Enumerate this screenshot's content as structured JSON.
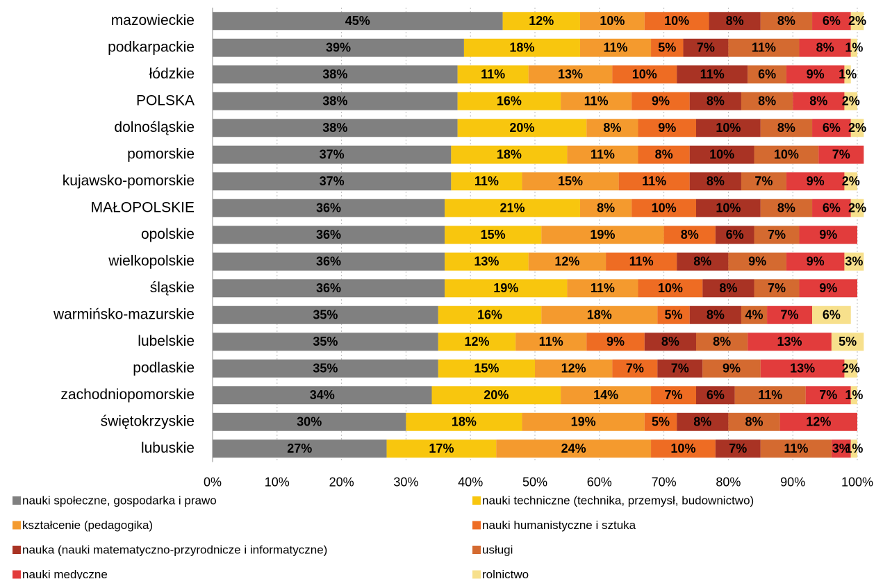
{
  "chart_data": {
    "type": "bar",
    "orientation": "horizontal",
    "stacked": true,
    "grid": true,
    "legend": "bottom",
    "categories": [
      "mazowieckie",
      "podkarpackie",
      "łódzkie",
      "POLSKA",
      "dolnośląskie",
      "pomorskie",
      "kujawsko-pomorskie",
      "MAŁOPOLSKIE",
      "opolskie",
      "wielkopolskie",
      "śląskie",
      "warmińsko-mazurskie",
      "lubelskie",
      "podlaskie",
      "zachodniopomorskie",
      "świętokrzyskie",
      "lubuskie"
    ],
    "xlim": [
      0,
      100
    ],
    "xticks": [
      {
        "value": 0,
        "label": "0%"
      },
      {
        "value": 10,
        "label": "10%"
      },
      {
        "value": 20,
        "label": "20%"
      },
      {
        "value": 30,
        "label": "30%"
      },
      {
        "value": 40,
        "label": "40%"
      },
      {
        "value": 50,
        "label": "50%"
      },
      {
        "value": 60,
        "label": "60%"
      },
      {
        "value": 70,
        "label": "70%"
      },
      {
        "value": 80,
        "label": "80%"
      },
      {
        "value": 90,
        "label": "90%"
      },
      {
        "value": 100,
        "label": "100%"
      }
    ],
    "series": [
      {
        "name": "nauki społeczne, gospodarka i prawo",
        "color": "#808080",
        "values": [
          45,
          39,
          38,
          38,
          38,
          37,
          37,
          36,
          36,
          36,
          36,
          35,
          35,
          35,
          34,
          30,
          27
        ],
        "value_labels": [
          "45%",
          "39%",
          "38%",
          "38%",
          "38%",
          "37%",
          "37%",
          "36%",
          "36%",
          "36%",
          "36%",
          "35%",
          "35%",
          "35%",
          "34%",
          "30%",
          "27%"
        ]
      },
      {
        "name": "nauki techniczne (technika, przemysł, budownictwo)",
        "color": "#f8c60e",
        "values": [
          12,
          18,
          11,
          16,
          20,
          18,
          11,
          21,
          15,
          13,
          19,
          16,
          12,
          15,
          20,
          18,
          17
        ],
        "value_labels": [
          "12%",
          "18%",
          "11%",
          "16%",
          "20%",
          "18%",
          "11%",
          "21%",
          "15%",
          "13%",
          "19%",
          "16%",
          "12%",
          "15%",
          "20%",
          "18%",
          "17%"
        ]
      },
      {
        "name": "kształcenie (pedagogika)",
        "color": "#f49a2e",
        "values": [
          10,
          11,
          13,
          11,
          8,
          11,
          15,
          8,
          19,
          12,
          11,
          18,
          11,
          12,
          14,
          19,
          24
        ],
        "value_labels": [
          "10%",
          "11%",
          "13%",
          "11%",
          "8%",
          "11%",
          "15%",
          "8%",
          "19%",
          "12%",
          "11%",
          "18%",
          "11%",
          "12%",
          "14%",
          "19%",
          "24%"
        ]
      },
      {
        "name": "nauki humanistyczne i sztuka",
        "color": "#ee6c23",
        "values": [
          10,
          5,
          10,
          9,
          9,
          8,
          11,
          10,
          8,
          11,
          10,
          5,
          9,
          7,
          7,
          5,
          10
        ],
        "value_labels": [
          "10%",
          "5%",
          "10%",
          "9%",
          "9%",
          "8%",
          "11%",
          "10%",
          "8%",
          "11%",
          "10%",
          "5%",
          "9%",
          "7%",
          "7%",
          "5%",
          "10%"
        ]
      },
      {
        "name": "nauka (nauki matematyczno-przyrodnicze i informatyczne)",
        "color": "#a93324",
        "values": [
          8,
          7,
          11,
          8,
          10,
          10,
          8,
          10,
          6,
          8,
          8,
          8,
          8,
          7,
          6,
          8,
          7
        ],
        "value_labels": [
          "8%",
          "7%",
          "11%",
          "8%",
          "10%",
          "10%",
          "8%",
          "10%",
          "6%",
          "8%",
          "8%",
          "8%",
          "8%",
          "7%",
          "6%",
          "8%",
          "7%"
        ]
      },
      {
        "name": "usługi",
        "color": "#d46a30",
        "values": [
          8,
          11,
          6,
          8,
          8,
          10,
          7,
          8,
          7,
          9,
          7,
          4,
          8,
          9,
          11,
          8,
          11
        ],
        "value_labels": [
          "8%",
          "11%",
          "6%",
          "8%",
          "8%",
          "10%",
          "7%",
          "8%",
          "7%",
          "9%",
          "7%",
          "4%",
          "8%",
          "9%",
          "11%",
          "8%",
          "11%"
        ]
      },
      {
        "name": "nauki medyczne",
        "color": "#e23c3c",
        "values": [
          6,
          8,
          9,
          8,
          6,
          7,
          9,
          6,
          9,
          9,
          9,
          7,
          13,
          13,
          7,
          12,
          3
        ],
        "value_labels": [
          "6%",
          "8%",
          "9%",
          "8%",
          "6%",
          "7%",
          "9%",
          "6%",
          "9%",
          "9%",
          "9%",
          "7%",
          "13%",
          "13%",
          "7%",
          "12%",
          "3%"
        ]
      },
      {
        "name": "rolnictwo",
        "color": "#f7e08c",
        "values": [
          2,
          1,
          1,
          2,
          2,
          null,
          2,
          2,
          null,
          3,
          null,
          6,
          5,
          2,
          1,
          null,
          1
        ],
        "value_labels": [
          "2%",
          "1%",
          "1%",
          "2%",
          "2%",
          null,
          "2%",
          "2%",
          null,
          "3%",
          null,
          "6%",
          "5%",
          "2%",
          "1%",
          null,
          "1%"
        ]
      }
    ]
  }
}
